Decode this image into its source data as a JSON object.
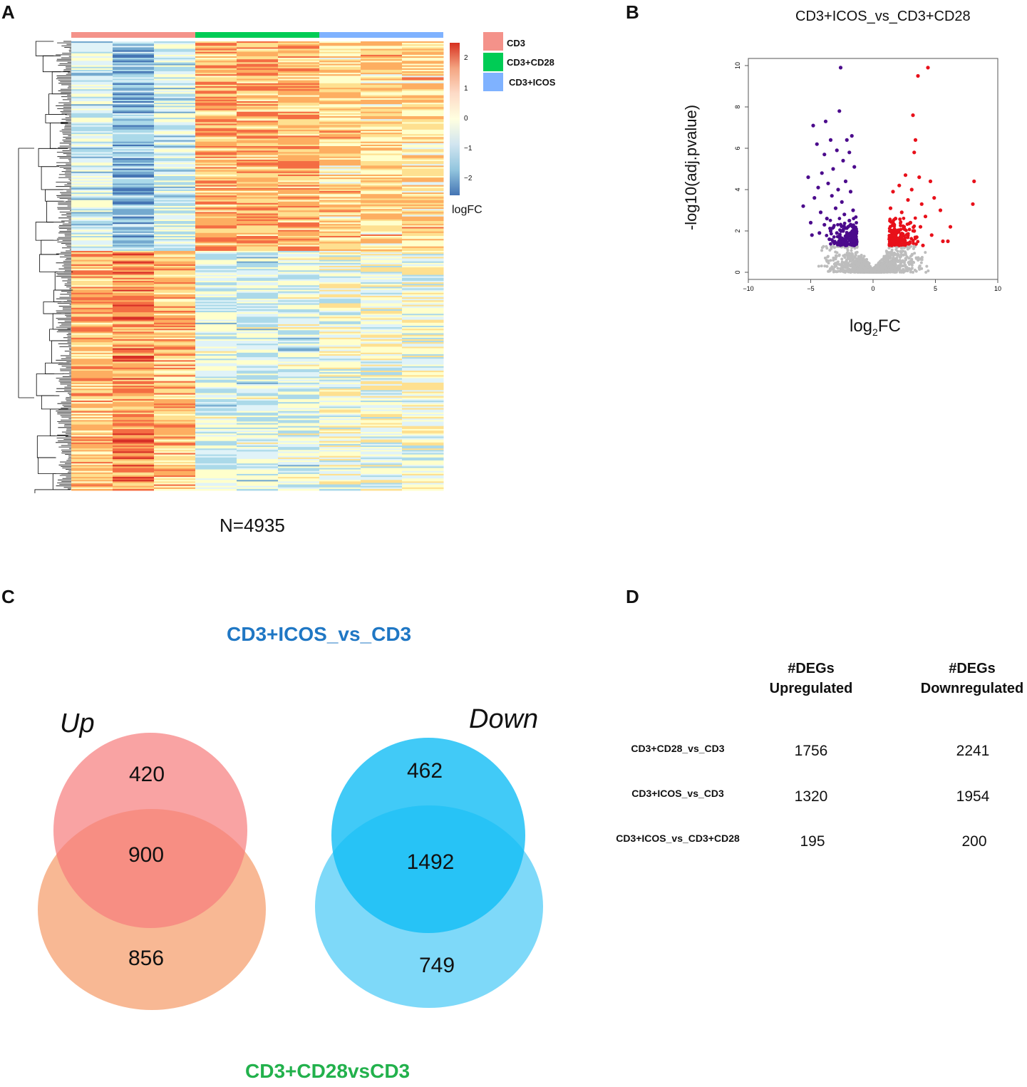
{
  "panels": {
    "a": "A",
    "b": "B",
    "c": "C",
    "d": "D"
  },
  "heatmap": {
    "legend": [
      {
        "label": "CD3",
        "color": "#f4928a"
      },
      {
        "label": "CD3+CD28",
        "color": "#00cc55"
      },
      {
        "label": "CD3+ICOS",
        "color": "#7fb2ff"
      }
    ],
    "colorbar_ticks": [
      "2",
      "1",
      "0",
      "−1",
      "−2"
    ],
    "colorbar_title": "logFC",
    "n_label": "N=4935"
  },
  "volcano": {
    "title": "CD3+ICOS_vs_CD3+CD28",
    "ylabel": "-log10(adj.pvalue)",
    "xlabel_main": "log",
    "xlabel_sub": "2",
    "xlabel_end": "FC",
    "x_ticks": [
      "−10",
      "−5",
      "0",
      "5",
      "10"
    ],
    "y_ticks": [
      "0",
      "2",
      "4",
      "6",
      "8",
      "10"
    ],
    "colors": {
      "down": "#4b0a8c",
      "up": "#e8101a",
      "ns": "#bdbdbd"
    }
  },
  "chart_data": {
    "type": "scatter",
    "title": "CD3+ICOS_vs_CD3+CD28",
    "xlabel": "log2FC",
    "ylabel": "-log10(adj.pvalue)",
    "xlim": [
      -10,
      10
    ],
    "ylim": [
      0,
      10
    ],
    "series": [
      {
        "name": "down",
        "points": [
          [
            -2.6,
            9.9
          ],
          [
            -2.7,
            7.8
          ],
          [
            -4.8,
            7.1
          ],
          [
            -3.8,
            7.3
          ],
          [
            -1.7,
            6.6
          ],
          [
            -2.1,
            6.4
          ],
          [
            -3.4,
            6.4
          ],
          [
            -4.5,
            6.2
          ],
          [
            -1.9,
            5.8
          ],
          [
            -2.9,
            5.9
          ],
          [
            -3.9,
            5.7
          ],
          [
            -2.4,
            5.4
          ],
          [
            -1.5,
            5.1
          ],
          [
            -3.2,
            5.0
          ],
          [
            -4.1,
            4.8
          ],
          [
            -5.2,
            4.6
          ],
          [
            -2.2,
            4.4
          ],
          [
            -3.6,
            4.3
          ],
          [
            -4.4,
            4.1
          ],
          [
            -2.8,
            4.0
          ],
          [
            -1.8,
            3.9
          ],
          [
            -3.3,
            3.7
          ],
          [
            -4.7,
            3.6
          ],
          [
            -2.5,
            3.4
          ],
          [
            -5.6,
            3.2
          ],
          [
            -3.0,
            3.1
          ],
          [
            -1.6,
            3.0
          ],
          [
            -4.2,
            2.9
          ],
          [
            -2.3,
            2.8
          ],
          [
            -3.7,
            2.6
          ],
          [
            -5.0,
            2.4
          ],
          [
            -2.0,
            2.2
          ],
          [
            -3.4,
            2.0
          ],
          [
            -4.9,
            1.8
          ],
          [
            -2.6,
            1.6
          ],
          [
            -1.7,
            1.5
          ],
          [
            -3.1,
            1.4
          ],
          [
            -2.2,
            1.3
          ],
          [
            -1.5,
            1.3
          ],
          [
            -2.9,
            1.9
          ],
          [
            -3.9,
            2.3
          ],
          [
            -1.9,
            2.5
          ],
          [
            -2.4,
            2.0
          ],
          [
            -3.5,
            1.6
          ],
          [
            -4.3,
            1.9
          ]
        ]
      },
      {
        "name": "up",
        "points": [
          [
            4.4,
            9.9
          ],
          [
            3.6,
            9.5
          ],
          [
            3.2,
            7.6
          ],
          [
            3.4,
            6.4
          ],
          [
            3.3,
            5.8
          ],
          [
            8.1,
            4.4
          ],
          [
            8.0,
            3.3
          ],
          [
            3.7,
            4.6
          ],
          [
            2.6,
            4.7
          ],
          [
            4.6,
            4.4
          ],
          [
            2.1,
            4.2
          ],
          [
            3.1,
            4.0
          ],
          [
            1.6,
            3.9
          ],
          [
            4.9,
            3.6
          ],
          [
            2.8,
            3.5
          ],
          [
            3.9,
            3.3
          ],
          [
            1.4,
            3.1
          ],
          [
            5.4,
            3.0
          ],
          [
            2.3,
            2.9
          ],
          [
            4.2,
            2.7
          ],
          [
            1.8,
            2.6
          ],
          [
            6.2,
            2.2
          ],
          [
            3.0,
            2.4
          ],
          [
            2.5,
            2.1
          ],
          [
            5.6,
            1.5
          ],
          [
            4.7,
            1.8
          ],
          [
            1.9,
            1.9
          ],
          [
            3.5,
            1.7
          ],
          [
            1.3,
            1.6
          ],
          [
            2.7,
            1.4
          ],
          [
            4.0,
            1.3
          ],
          [
            1.5,
            1.3
          ],
          [
            2.2,
            1.5
          ],
          [
            3.3,
            2.0
          ],
          [
            1.7,
            2.3
          ],
          [
            2.4,
            1.8
          ],
          [
            6.0,
            1.5
          ],
          [
            3.8,
            2.2
          ]
        ]
      },
      {
        "name": "not significant",
        "description": "dense grey cloud of points with |log2FC| < ~1.3 or adj.pvalue above cutoff, y from 0 to ~1.3"
      }
    ]
  },
  "venn": {
    "title_top": "CD3+ICOS_vs_CD3",
    "title_bottom": "CD3+CD28vsCD3",
    "up_label": "Up",
    "down_label": "Down",
    "up": {
      "top_only": "420",
      "overlap": "900",
      "bottom_only": "856"
    },
    "down": {
      "top_only": "462",
      "overlap": "1492",
      "bottom_only": "749"
    },
    "colors": {
      "title_top": "#1f77c4",
      "title_bottom": "#22b14c",
      "up_top": "#f98f8f",
      "up_bottom": "#f5a070",
      "down_top": "#12bdf5",
      "down_bottom": "#5ed0f7"
    }
  },
  "table": {
    "col1_line1": "#DEGs",
    "col1_line2": "Upregulated",
    "col2_line1": "#DEGs",
    "col2_line2": "Downregulated",
    "rows": [
      {
        "label": "CD3+CD28_vs_CD3",
        "up": "1756",
        "down": "2241"
      },
      {
        "label": "CD3+ICOS_vs_CD3",
        "up": "1320",
        "down": "1954"
      },
      {
        "label": "CD3+ICOS_vs_CD3+CD28",
        "up": "195",
        "down": "200"
      }
    ]
  }
}
